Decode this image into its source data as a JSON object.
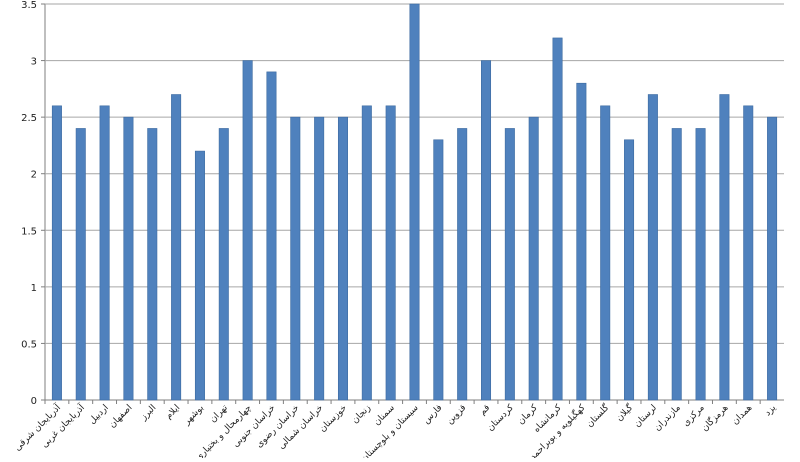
{
  "chart_data": {
    "type": "bar",
    "categories": [
      "آذربایجان شرقی",
      "آذربایجان غربی",
      "اردبیل",
      "اصفهان",
      "البرز",
      "ایلام",
      "بوشهر",
      "تهران",
      "چهارمحال و بختیاری",
      "خراسان جنوبی",
      "خراسان رضوی",
      "خراسان شمالی",
      "خوزستان",
      "زنجان",
      "سمنان",
      "سیستان و بلوچستان",
      "فارس",
      "قزوین",
      "قم",
      "کردستان",
      "کرمان",
      "کرمانشاه",
      "کهگیلویه و بویراحمد",
      "گلستان",
      "گیلان",
      "لرستان",
      "مازندران",
      "مرکزی",
      "هرمزگان",
      "همدان",
      "یزد"
    ],
    "values": [
      2.6,
      2.4,
      2.6,
      2.5,
      2.4,
      2.7,
      2.2,
      2.4,
      3.0,
      2.9,
      2.5,
      2.5,
      2.5,
      2.6,
      2.6,
      3.5,
      2.3,
      2.4,
      3.0,
      2.4,
      2.5,
      3.2,
      2.8,
      2.6,
      2.3,
      2.7,
      2.4,
      2.4,
      2.7,
      2.6,
      2.5
    ],
    "yticks": [
      "0",
      "0.5",
      "1",
      "1.5",
      "2",
      "2.5",
      "3",
      "3.5"
    ],
    "ylim": [
      0,
      3.5
    ],
    "grid": true,
    "legend": "none",
    "title": "",
    "xlabel": "",
    "ylabel": "",
    "bar_color": "#4f81bd",
    "bar_edge_color": "#3c6aa0",
    "grid_color": "#a6a6a6"
  }
}
